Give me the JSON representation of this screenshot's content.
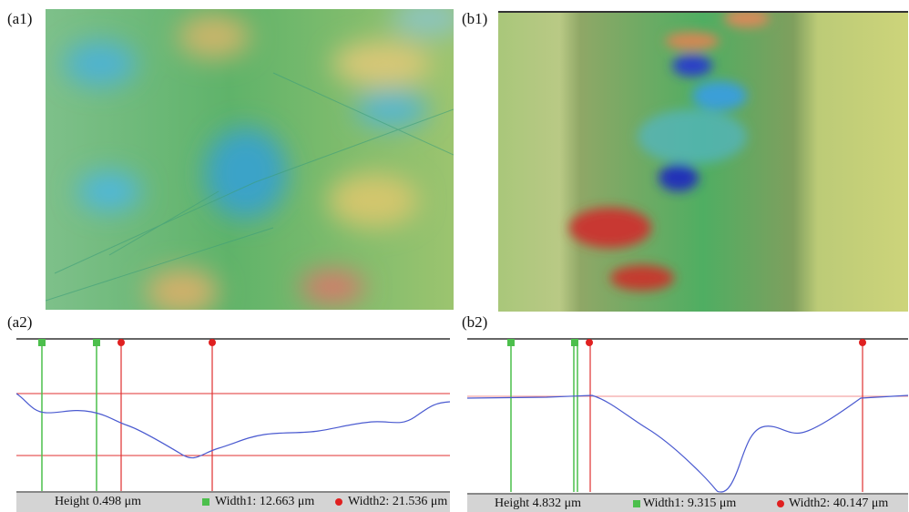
{
  "panels": [
    {
      "label": "(a1)"
    },
    {
      "label": "(b1)"
    }
  ],
  "profiles": [
    {
      "label": "(a2)",
      "height": "Height 0.498 μm",
      "width1": "Width1: 12.663 μm",
      "width2": "Width2: 21.536 μm"
    },
    {
      "label": "(b2)",
      "height": "Height 4.832 μm",
      "width1": "Width1: 9.315 μm",
      "width2": "Width2: 40.147 μm"
    }
  ]
}
